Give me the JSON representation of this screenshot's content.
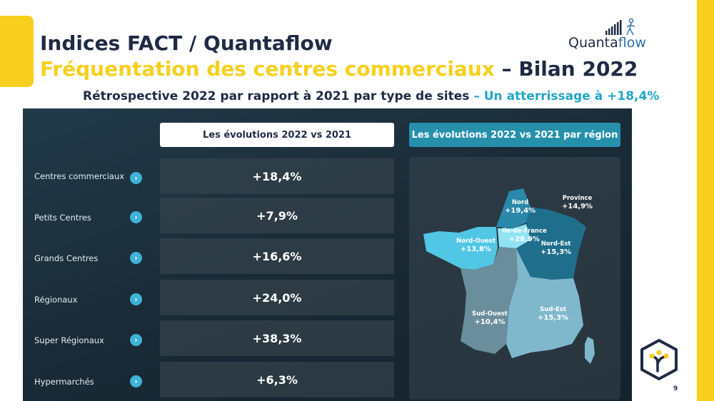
{
  "title": {
    "line1": "Indices FACT / Quantaflow",
    "line2_highlight": "Fréquentation des centres commerciaux",
    "line2_rest": " – Bilan 2022"
  },
  "subtitle": {
    "main": "Rétrospective 2022 par rapport à 2021 par type de sites",
    "highlight": " – Un atterrissage à +18,4%"
  },
  "logo": {
    "text_main": "Quanta",
    "text_accent": "flow",
    "icon": "bar-chart-walker-icon"
  },
  "table": {
    "header_left": "Les évolutions 2022 vs 2021",
    "header_right": "Les évolutions 2022 vs 2021 par région",
    "rows": [
      {
        "label": "Centres commerciaux",
        "value": "+18,4%"
      },
      {
        "label": "Petits Centres",
        "value": "+7,9%"
      },
      {
        "label": "Grands Centres",
        "value": "+16,6%"
      },
      {
        "label": "Régionaux",
        "value": "+24,0%"
      },
      {
        "label": "Super Régionaux",
        "value": "+38,3%"
      },
      {
        "label": "Hypermarchés",
        "value": "+6,3%"
      }
    ],
    "chevron_glyph": "›"
  },
  "map": {
    "regions": [
      {
        "name": "Province",
        "value": "+14,9%"
      },
      {
        "name": "Nord",
        "value": "+19,4%"
      },
      {
        "name": "Ile-de-France",
        "value": "+28,9%"
      },
      {
        "name": "Nord-Ouest",
        "value": "+13,8%"
      },
      {
        "name": "Nord-Est",
        "value": "+15,3%"
      },
      {
        "name": "Sud-Ouest",
        "value": "+10,4%"
      },
      {
        "name": "Sud-Est",
        "value": "+15,3%"
      }
    ],
    "colors": {
      "nord": "#2a88aa",
      "idf": "#8fe3f5",
      "nord_ouest": "#52c6e5",
      "nord_est": "#1f6e8c",
      "sud_ouest": "#6a8e9b",
      "sud_est": "#7fb8cc"
    }
  },
  "colors": {
    "yellow": "#f8cf1d",
    "navy": "#1f2a44",
    "teal": "#2690ab",
    "cyan": "#22a5c9"
  },
  "page_number": "9",
  "badge_icon": "tree-hexagon-icon"
}
